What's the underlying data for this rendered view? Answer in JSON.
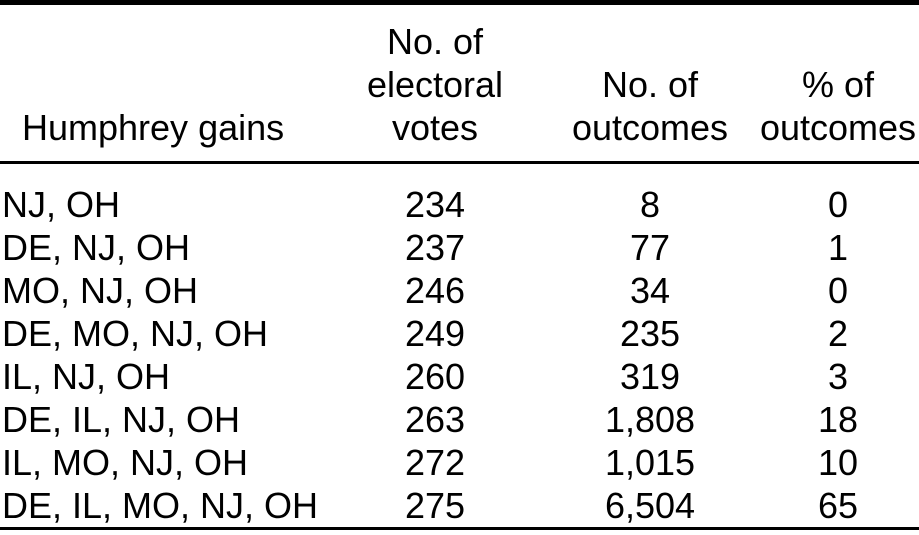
{
  "table": {
    "title": "Humphrey gains table",
    "columns": [
      {
        "id": "humphrey-gains",
        "label": "Humphrey gains",
        "align": "left"
      },
      {
        "id": "electoral-votes",
        "label": "No. of\nelectoral\nvotes",
        "align": "center"
      },
      {
        "id": "no-of-outcomes",
        "label": "No. of\noutcomes",
        "align": "center"
      },
      {
        "id": "pct-of-outcomes",
        "label": "% of\noutcomes",
        "align": "center"
      }
    ],
    "rows": [
      [
        "NJ, OH",
        "234",
        "8",
        "0"
      ],
      [
        "DE, NJ, OH",
        "237",
        "77",
        "1"
      ],
      [
        "MO, NJ, OH",
        "246",
        "34",
        "0"
      ],
      [
        "DE, MO, NJ, OH",
        "249",
        "235",
        "2"
      ],
      [
        "IL, NJ, OH",
        "260",
        "319",
        "3"
      ],
      [
        "DE, IL, NJ, OH",
        "263",
        "1,808",
        "18"
      ],
      [
        "IL, MO, NJ, OH",
        "272",
        "1,015",
        "10"
      ],
      [
        "DE, IL, MO, NJ, OH",
        "275",
        "6,504",
        "65"
      ]
    ]
  },
  "colors": {
    "text": "#000000",
    "background": "#ffffff",
    "rule": "#000000"
  }
}
